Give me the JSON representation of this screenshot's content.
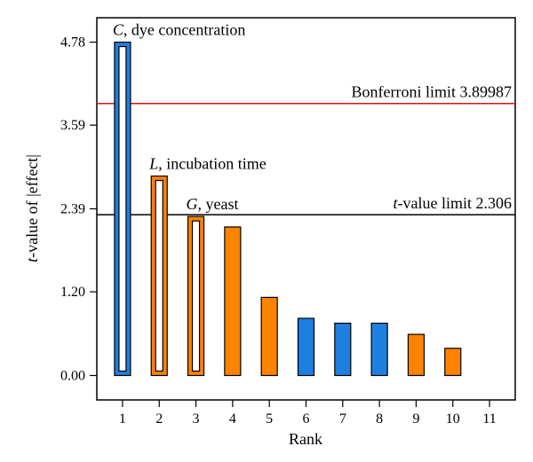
{
  "chart_data": {
    "type": "bar",
    "xlabel": "Rank",
    "ylabel": "t-value of |effect|",
    "x_ticks": [
      "1",
      "2",
      "3",
      "4",
      "5",
      "6",
      "7",
      "8",
      "9",
      "10",
      "11"
    ],
    "y_ticks": [
      "0.00",
      "1.20",
      "2.39",
      "3.59",
      "4.78"
    ],
    "ylim": [
      -0.35,
      5.13
    ],
    "xlim": [
      0.3,
      11.7
    ],
    "bars": [
      {
        "rank": 1,
        "value": 4.78,
        "color": "#1E7FE0",
        "outlined": true
      },
      {
        "rank": 2,
        "value": 2.86,
        "color": "#FF8200",
        "outlined": true
      },
      {
        "rank": 3,
        "value": 2.28,
        "color": "#FF8200",
        "outlined": true
      },
      {
        "rank": 4,
        "value": 2.13,
        "color": "#FF8200",
        "outlined": false
      },
      {
        "rank": 5,
        "value": 1.12,
        "color": "#FF8200",
        "outlined": false
      },
      {
        "rank": 6,
        "value": 0.82,
        "color": "#1E7FE0",
        "outlined": false
      },
      {
        "rank": 7,
        "value": 0.75,
        "color": "#1E7FE0",
        "outlined": false
      },
      {
        "rank": 8,
        "value": 0.75,
        "color": "#1E7FE0",
        "outlined": false
      },
      {
        "rank": 9,
        "value": 0.59,
        "color": "#FF8200",
        "outlined": false
      },
      {
        "rank": 10,
        "value": 0.39,
        "color": "#FF8200",
        "outlined": false
      }
    ],
    "bar_labels": [
      {
        "rank": 1,
        "letter": "C",
        "text": ", dye concentration"
      },
      {
        "rank": 2,
        "letter": "L",
        "text": ", incubation time"
      },
      {
        "rank": 3,
        "letter": "G",
        "text": ", yeast"
      }
    ],
    "reference_lines": [
      {
        "name": "bonferroni",
        "label": "Bonferroni limit 3.89987",
        "value": 3.89987,
        "color": "#E01010"
      },
      {
        "name": "t-value",
        "label_prefix": "t",
        "label": "-value limit 2.306",
        "value": 2.306,
        "color": "#000000"
      }
    ],
    "grid": false,
    "legend": "none"
  }
}
